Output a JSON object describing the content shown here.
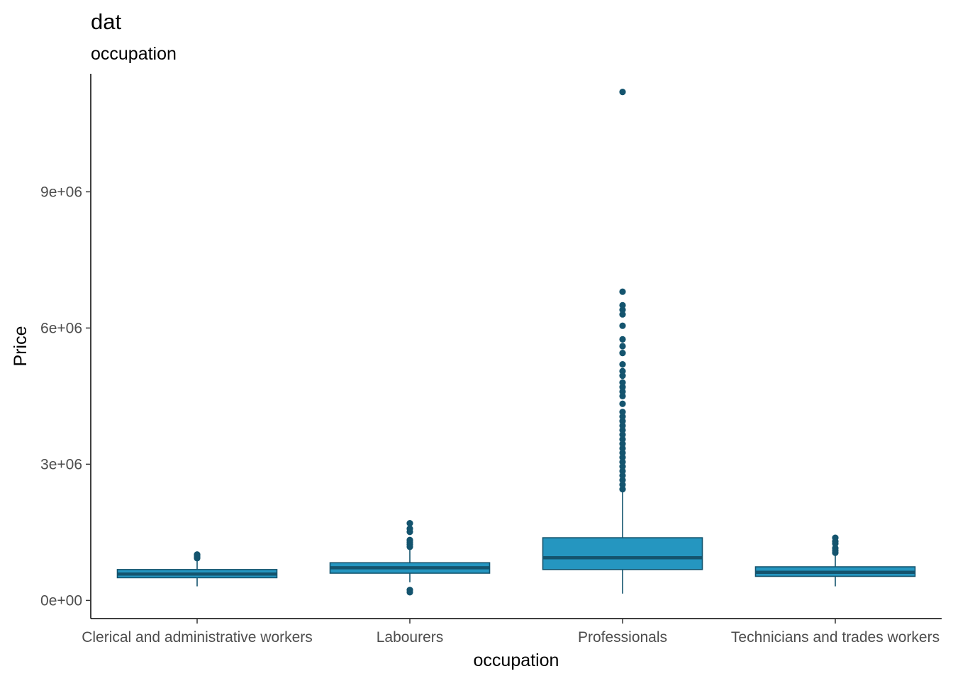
{
  "chart_data": {
    "type": "boxplot",
    "title": "dat",
    "subtitle": "occupation",
    "xlabel": "occupation",
    "ylabel": "Price",
    "ylim": [
      -400000,
      11600000
    ],
    "yticks": [
      {
        "value": 0,
        "label": "0e+00"
      },
      {
        "value": 3000000,
        "label": "3e+06"
      },
      {
        "value": 6000000,
        "label": "6e+06"
      },
      {
        "value": 9000000,
        "label": "9e+06"
      }
    ],
    "categories": [
      "Clerical and administrative workers",
      "Labourers",
      "Professionals",
      "Technicians and trades workers"
    ],
    "colors": {
      "fill": "#2596c0",
      "line": "#14546e",
      "axis": "#000000"
    },
    "boxes": [
      {
        "category": "Clerical and administrative workers",
        "whisker_low": 310000,
        "q1": 500000,
        "median": 580000,
        "q3": 680000,
        "whisker_high": 900000,
        "outliers": [
          930000,
          960000,
          990000,
          1010000
        ]
      },
      {
        "category": "Labourers",
        "whisker_low": 400000,
        "q1": 600000,
        "median": 720000,
        "q3": 830000,
        "whisker_high": 1150000,
        "outliers": [
          180000,
          230000,
          1180000,
          1230000,
          1280000,
          1330000,
          1510000,
          1580000,
          1700000
        ]
      },
      {
        "category": "Professionals",
        "whisker_low": 150000,
        "q1": 680000,
        "median": 940000,
        "q3": 1380000,
        "whisker_high": 2380000,
        "outliers": [
          2450000,
          2550000,
          2650000,
          2750000,
          2850000,
          2950000,
          3050000,
          3150000,
          3250000,
          3350000,
          3450000,
          3550000,
          3650000,
          3750000,
          3850000,
          3950000,
          4050000,
          4150000,
          4330000,
          4500000,
          4600000,
          4700000,
          4800000,
          4950000,
          5050000,
          5200000,
          5450000,
          5600000,
          5750000,
          6050000,
          6300000,
          6400000,
          6500000,
          6800000,
          11200000
        ]
      },
      {
        "category": "Technicians and trades workers",
        "whisker_low": 310000,
        "q1": 530000,
        "median": 620000,
        "q3": 740000,
        "whisker_high": 1000000,
        "outliers": [
          1050000,
          1100000,
          1150000,
          1250000,
          1300000,
          1380000
        ]
      }
    ]
  }
}
